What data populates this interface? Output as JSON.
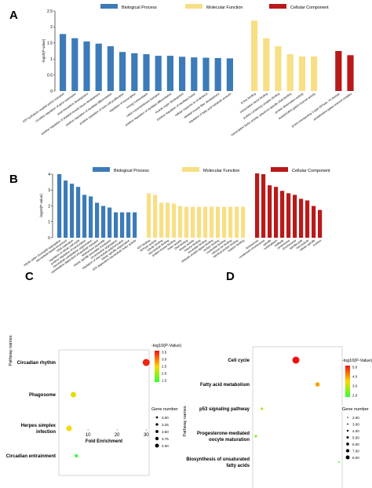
{
  "panels": [
    {
      "letter": "A",
      "chart_data": {
        "type": "bar",
        "ylabel": "-log10(P-value)",
        "ylim": [
          0,
          2.5
        ],
        "yticks": [
          "0",
          "0.5",
          "1",
          "1.5",
          "2",
          "2.5"
        ],
        "legend": [
          {
            "name": "Biological Process",
            "color": "#3d7bb8"
          },
          {
            "name": "Molecular Function",
            "color": "#f7df85"
          },
          {
            "name": "Cellular Component",
            "color": "#b81a1a"
          }
        ],
        "groups": [
          {
            "color": "#3d7bb8",
            "categories": [
              "ATP hydrolysis coupled proton transport",
              "circadian regulation of gene expression",
              "axial mesoderm development",
              "positive regulation of skeletal muscle tissue development",
              "positive regulation of myoblast differentiation",
              "positive regulation of stem cell proliferation",
              "regulation of transcription",
              "energy homeostasis",
              "cation transmembrane transport",
              "positive regulation of myoblast differentiation",
              "muscle organ development",
              "positive regulation of myoblast fusion",
              "cellular response to cholesterol",
              "skeletal muscle fiber development",
              "regulation of fatty acid metabolic process"
            ],
            "values": [
              1.78,
              1.65,
              1.55,
              1.48,
              1.4,
              1.22,
              1.18,
              1.15,
              1.1,
              1.1,
              1.07,
              1.05,
              1.04,
              1.03,
              1.02
            ]
          },
          {
            "color": "#f7df85",
            "categories": [
              "E-box binding",
              "transcription factor binding",
              "protein-containing complex binding",
              "transcription factor activity, sequence-specific DNA binding",
              "protein dimerization activity",
              "acetylcholine-gated channel activity"
            ],
            "values": [
              2.2,
              1.65,
              1.4,
              1.15,
              1.08,
              1.08
            ]
          },
          {
            "color": "#b81a1a",
            "categories": [
              "proton-transporting V-type ATPase, V0 domain",
              "acetylcholine-gated channel complex"
            ],
            "values": [
              1.25,
              1.12
            ]
          }
        ]
      }
    },
    {
      "letter": "B",
      "chart_data": {
        "type": "bar",
        "ylabel": "-log10(P-value)",
        "ylim": [
          0,
          4
        ],
        "yticks": [
          "0",
          "1",
          "2",
          "3",
          "4"
        ],
        "legend": [
          {
            "name": "Biological Process",
            "color": "#3d7bb8"
          },
          {
            "name": "Molecular Function",
            "color": "#f7df85"
          },
          {
            "name": "Cellular Component",
            "color": "#b81a1a"
          }
        ],
        "groups": [
          {
            "color": "#3d7bb8",
            "categories": [
              "mitotic sister chromatid segregation",
              "microtubule-based movement",
              "DNA replication",
              "regulation of mitotic cell cycle",
              "positive regulation of transcription",
              "microtubule cytoskeleton organization",
              "cytoskeleton-dependent intracellular transport",
              "kinetochore assembly",
              "mitotic spindle assembly checkpoint",
              "chromosome segregation",
              "regulation of microtubule polymerization",
              "mitotic spindle organization",
              "ATP-dependent microtubule motor activity"
            ],
            "values": [
              4.0,
              3.6,
              3.4,
              3.2,
              2.7,
              2.6,
              2.2,
              2.0,
              1.9,
              1.6,
              1.6,
              1.6,
              1.6
            ]
          },
          {
            "color": "#f7df85",
            "categories": [
              "ATP binding",
              "ATPase activity",
              "tubulin binding",
              "microtubule binding",
              "protein kinase binding",
              "motor activity",
              "DNA binding",
              "kinase activity",
              "histone binding",
              "chromatin binding",
              "ubiquitin protein ligase binding",
              "protein binding",
              "nucleotide binding",
              "calcium ion binding",
              "identical protein binding",
              "heparin binding"
            ],
            "values": [
              2.8,
              2.7,
              2.2,
              2.2,
              2.15,
              2.0,
              1.95,
              1.95,
              1.95,
              1.95,
              1.95,
              1.95,
              1.95,
              1.95,
              1.95,
              1.95
            ]
          },
          {
            "color": "#b81a1a",
            "categories": [
              "kinetochore",
              "condensed chromosome",
              "spindle",
              "nucleoplasm",
              "midbody",
              "centrosome",
              "chromosome",
              "spindle pole",
              "microtubule",
              "mitotic spindle",
              "nucleus"
            ],
            "values": [
              4.05,
              4.0,
              3.3,
              3.2,
              2.95,
              2.8,
              2.7,
              2.45,
              2.35,
              2.0,
              1.75
            ]
          }
        ]
      }
    },
    {
      "letter": "C",
      "chart_data": {
        "type": "scatter",
        "xlabel": "Fold Enrichment",
        "ylabel": "Pathway names",
        "xlim": [
          0,
          31
        ],
        "xticks": [
          10,
          20,
          30
        ],
        "categories": [
          "Circadian rhythm",
          "Phagosome",
          "Herpes simplex infection",
          "Circadian entrainment"
        ],
        "x": [
          30,
          5,
          3.5,
          6
        ],
        "p_value": [
          3.5,
          2.4,
          2.5,
          1.0
        ],
        "gene_number": [
          4,
          3.5,
          3.5,
          2.8
        ],
        "color_legend_title": "-log10(P-Value)",
        "color_ticks": [
          "3.5",
          "3.0",
          "2.5",
          "2.0",
          "1.5"
        ],
        "size_legend_title": "Gene number",
        "size_legend": [
          "3.00",
          "3.25",
          "3.50",
          "3.75",
          "4.00"
        ]
      }
    },
    {
      "letter": "D",
      "chart_data": {
        "type": "scatter",
        "xlabel": "Fold Enrichment",
        "ylabel": "Pathway names",
        "xlim": [
          5.5,
          20
        ],
        "xticks": [
          10,
          15
        ],
        "categories": [
          "Cell cycle",
          "Fatty acid metabolism",
          "p53 signaling pathway",
          "Progesterone-mediated oocyte maturation",
          "Biosynthesis of unsaturated fatty acids"
        ],
        "x": [
          12.5,
          16,
          7,
          6,
          19.5
        ],
        "p_value": [
          6.0,
          4.4,
          2.8,
          2.4,
          1.6
        ],
        "gene_number": [
          8,
          5,
          3,
          3,
          2
        ],
        "color_legend_title": "-log10(P-Value)",
        "color_ticks": [
          "5.0",
          "4.0",
          "3.0",
          "2.0"
        ],
        "size_legend_title": "Gene number",
        "size_legend": [
          "2.00",
          "3.00",
          "4.00",
          "5.00",
          "6.00",
          "7.00",
          "8.00"
        ]
      }
    }
  ]
}
